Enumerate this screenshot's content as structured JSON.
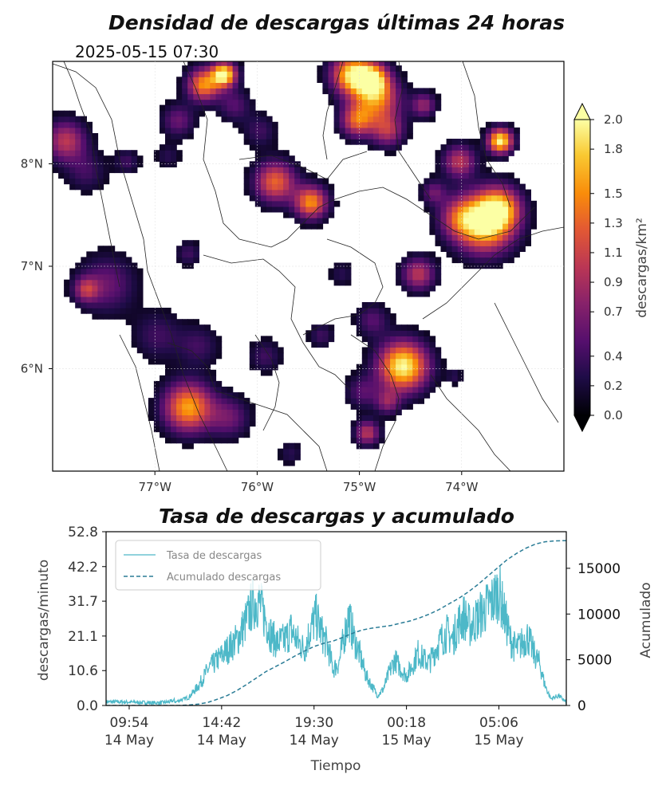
{
  "chart_data": [
    {
      "type": "heatmap",
      "title": "Densidad de descargas últimas 24 horas",
      "subtitle": "2025-05-15 07:30",
      "x_ticks": [
        "77°W",
        "76°W",
        "75°W",
        "74°W"
      ],
      "x_tick_values": [
        -77,
        -76,
        -75,
        -74
      ],
      "y_ticks": [
        "8°N",
        "7°N",
        "6°N"
      ],
      "y_tick_values": [
        8,
        7,
        6
      ],
      "xlim": [
        -78,
        -73
      ],
      "ylim": [
        5,
        9
      ],
      "colorbar": {
        "label": "descargas/km²",
        "ticks": [
          "0.0",
          "0.2",
          "0.4",
          "0.7",
          "0.9",
          "1.1",
          "1.3",
          "1.5",
          "1.8",
          "2.0"
        ],
        "tick_values": [
          0.0,
          0.2,
          0.4,
          0.7,
          0.9,
          1.1,
          1.3,
          1.5,
          1.8,
          2.0
        ],
        "range": [
          0,
          2.0
        ],
        "extend": "both",
        "colormap": "inferno"
      },
      "hotspots": [
        {
          "lon": -75.1,
          "lat": 8.85,
          "radius": 0.25,
          "peak": 1.8
        },
        {
          "lon": -74.85,
          "lat": 8.6,
          "radius": 0.28,
          "peak": 1.3
        },
        {
          "lon": -75.05,
          "lat": 8.4,
          "radius": 0.2,
          "peak": 1.2
        },
        {
          "lon": -74.9,
          "lat": 8.8,
          "radius": 0.2,
          "peak": 1.5
        },
        {
          "lon": -74.75,
          "lat": 8.3,
          "radius": 0.2,
          "peak": 0.9
        },
        {
          "lon": -74.05,
          "lat": 8.0,
          "radius": 0.2,
          "peak": 1.0
        },
        {
          "lon": -73.65,
          "lat": 8.2,
          "radius": 0.15,
          "peak": 2.0
        },
        {
          "lon": -73.8,
          "lat": 7.4,
          "radius": 0.35,
          "peak": 2.0
        },
        {
          "lon": -73.65,
          "lat": 7.55,
          "radius": 0.25,
          "peak": 1.2
        },
        {
          "lon": -74.05,
          "lat": 7.45,
          "radius": 0.25,
          "peak": 0.8
        },
        {
          "lon": -74.3,
          "lat": 7.7,
          "radius": 0.15,
          "peak": 0.6
        },
        {
          "lon": -74.45,
          "lat": 6.9,
          "radius": 0.2,
          "peak": 1.0
        },
        {
          "lon": -74.6,
          "lat": 6.0,
          "radius": 0.3,
          "peak": 2.0
        },
        {
          "lon": -74.75,
          "lat": 5.65,
          "radius": 0.15,
          "peak": 0.7
        },
        {
          "lon": -74.95,
          "lat": 5.35,
          "radius": 0.15,
          "peak": 1.0
        },
        {
          "lon": -75.0,
          "lat": 5.75,
          "radius": 0.2,
          "peak": 0.5
        },
        {
          "lon": -74.9,
          "lat": 6.45,
          "radius": 0.2,
          "peak": 0.5
        },
        {
          "lon": -75.5,
          "lat": 7.6,
          "radius": 0.2,
          "peak": 1.5
        },
        {
          "lon": -75.85,
          "lat": 7.8,
          "radius": 0.25,
          "peak": 1.3
        },
        {
          "lon": -76.35,
          "lat": 8.85,
          "radius": 0.15,
          "peak": 2.0
        },
        {
          "lon": -76.55,
          "lat": 8.75,
          "radius": 0.2,
          "peak": 1.5
        },
        {
          "lon": -76.25,
          "lat": 8.55,
          "radius": 0.2,
          "peak": 0.5
        },
        {
          "lon": -76.8,
          "lat": 8.4,
          "radius": 0.2,
          "peak": 0.6
        },
        {
          "lon": -77.9,
          "lat": 8.2,
          "radius": 0.25,
          "peak": 1.0
        },
        {
          "lon": -77.7,
          "lat": 7.9,
          "radius": 0.25,
          "peak": 0.4
        },
        {
          "lon": -77.3,
          "lat": 8.0,
          "radius": 0.15,
          "peak": 0.4
        },
        {
          "lon": -76.9,
          "lat": 8.05,
          "radius": 0.15,
          "peak": 0.3
        },
        {
          "lon": -77.5,
          "lat": 6.8,
          "radius": 0.35,
          "peak": 0.6
        },
        {
          "lon": -77.7,
          "lat": 6.75,
          "radius": 0.15,
          "peak": 0.8
        },
        {
          "lon": -77.0,
          "lat": 6.3,
          "radius": 0.3,
          "peak": 0.4
        },
        {
          "lon": -76.6,
          "lat": 6.2,
          "radius": 0.25,
          "peak": 0.4
        },
        {
          "lon": -76.7,
          "lat": 5.6,
          "radius": 0.3,
          "peak": 1.6
        },
        {
          "lon": -76.3,
          "lat": 5.5,
          "radius": 0.25,
          "peak": 0.6
        },
        {
          "lon": -75.95,
          "lat": 6.1,
          "radius": 0.2,
          "peak": 0.4
        },
        {
          "lon": -75.7,
          "lat": 5.15,
          "radius": 0.15,
          "peak": 0.3
        },
        {
          "lon": -75.2,
          "lat": 6.9,
          "radius": 0.15,
          "peak": 0.3
        },
        {
          "lon": -75.4,
          "lat": 6.3,
          "radius": 0.15,
          "peak": 0.4
        },
        {
          "lon": -76.0,
          "lat": 8.3,
          "radius": 0.2,
          "peak": 0.4
        },
        {
          "lon": -76.7,
          "lat": 7.1,
          "radius": 0.15,
          "peak": 0.4
        },
        {
          "lon": -74.1,
          "lat": 5.9,
          "radius": 0.1,
          "peak": 0.3
        },
        {
          "lon": -74.4,
          "lat": 8.55,
          "radius": 0.15,
          "peak": 0.8
        }
      ]
    },
    {
      "type": "line",
      "title": "Tasa de descargas y acumulado",
      "xlabel": "Tiempo",
      "ylabel": "descargas/minuto",
      "y2label": "Acumulado",
      "ylim": [
        0,
        52.8
      ],
      "y2lim": [
        0,
        19000
      ],
      "x_range_hours": [
        8.7,
        32.6
      ],
      "y_ticks": [
        "0.0",
        "10.6",
        "21.1",
        "31.7",
        "42.2",
        "52.8"
      ],
      "y_tick_values": [
        0,
        10.6,
        21.1,
        31.7,
        42.2,
        52.8
      ],
      "y2_ticks": [
        "0",
        "5000",
        "10000",
        "15000"
      ],
      "y2_tick_values": [
        0,
        5000,
        10000,
        15000
      ],
      "x_ticks": [
        {
          "hours": 9.9,
          "time": "09:54",
          "date": "14 May"
        },
        {
          "hours": 14.7,
          "time": "14:42",
          "date": "14 May"
        },
        {
          "hours": 19.5,
          "time": "19:30",
          "date": "14 May"
        },
        {
          "hours": 24.3,
          "time": "00:18",
          "date": "15 May"
        },
        {
          "hours": 29.1,
          "time": "05:06",
          "date": "15 May"
        }
      ],
      "legend": {
        "placement": "top-left",
        "entries": [
          "Tasa de descargas",
          "Acumulado descargas"
        ]
      },
      "series": [
        {
          "name": "Tasa de descargas",
          "color": "#4db8c8",
          "points": [
            [
              8.7,
              0.5
            ],
            [
              9.5,
              0.5
            ],
            [
              10.5,
              0.3
            ],
            [
              11.5,
              0.2
            ],
            [
              12.0,
              0.5
            ],
            [
              12.5,
              1.5
            ],
            [
              13.0,
              2.5
            ],
            [
              13.5,
              6
            ],
            [
              14.0,
              11
            ],
            [
              14.5,
              14
            ],
            [
              15.0,
              17
            ],
            [
              15.5,
              20
            ],
            [
              16.0,
              26
            ],
            [
              16.3,
              31
            ],
            [
              16.6,
              32
            ],
            [
              17.0,
              26
            ],
            [
              17.3,
              21
            ],
            [
              17.6,
              19
            ],
            [
              18.0,
              20
            ],
            [
              18.3,
              23
            ],
            [
              18.6,
              20
            ],
            [
              19.0,
              17
            ],
            [
              19.3,
              23
            ],
            [
              19.6,
              27
            ],
            [
              19.9,
              22
            ],
            [
              20.2,
              18
            ],
            [
              20.5,
              11
            ],
            [
              20.8,
              13
            ],
            [
              21.1,
              22
            ],
            [
              21.3,
              27
            ],
            [
              21.6,
              20
            ],
            [
              21.9,
              15
            ],
            [
              22.2,
              9
            ],
            [
              22.5,
              6
            ],
            [
              22.8,
              3
            ],
            [
              23.1,
              5
            ],
            [
              23.4,
              10
            ],
            [
              23.7,
              14
            ],
            [
              24.0,
              11
            ],
            [
              24.3,
              9
            ],
            [
              24.6,
              12
            ],
            [
              24.9,
              16
            ],
            [
              25.2,
              14
            ],
            [
              25.5,
              13
            ],
            [
              25.8,
              17
            ],
            [
              26.1,
              20
            ],
            [
              26.4,
              22
            ],
            [
              26.7,
              20
            ],
            [
              27.0,
              25
            ],
            [
              27.3,
              27
            ],
            [
              27.6,
              24
            ],
            [
              27.9,
              26
            ],
            [
              28.2,
              28
            ],
            [
              28.5,
              30
            ],
            [
              28.8,
              32
            ],
            [
              29.1,
              35
            ],
            [
              29.4,
              27
            ],
            [
              29.7,
              20
            ],
            [
              30.0,
              17
            ],
            [
              30.3,
              19
            ],
            [
              30.6,
              21
            ],
            [
              30.9,
              16
            ],
            [
              31.2,
              13
            ],
            [
              31.5,
              6
            ],
            [
              31.8,
              2
            ],
            [
              32.2,
              3
            ],
            [
              32.6,
              1
            ]
          ]
        },
        {
          "name": "Acumulado descargas",
          "color": "#2a7c96",
          "points": [
            [
              8.7,
              0
            ],
            [
              12.5,
              0
            ],
            [
              13.0,
              50
            ],
            [
              13.5,
              150
            ],
            [
              14.0,
              350
            ],
            [
              14.5,
              700
            ],
            [
              15.0,
              1100
            ],
            [
              15.5,
              1650
            ],
            [
              16.0,
              2300
            ],
            [
              16.5,
              3000
            ],
            [
              17.0,
              3700
            ],
            [
              17.5,
              4250
            ],
            [
              18.0,
              4800
            ],
            [
              18.5,
              5400
            ],
            [
              19.0,
              5950
            ],
            [
              19.5,
              6450
            ],
            [
              20.0,
              6800
            ],
            [
              20.5,
              7050
            ],
            [
              21.0,
              7450
            ],
            [
              21.5,
              7900
            ],
            [
              22.0,
              8250
            ],
            [
              22.5,
              8450
            ],
            [
              23.0,
              8600
            ],
            [
              23.5,
              8750
            ],
            [
              24.0,
              9000
            ],
            [
              24.5,
              9250
            ],
            [
              25.0,
              9600
            ],
            [
              25.5,
              10000
            ],
            [
              26.0,
              10500
            ],
            [
              26.5,
              11100
            ],
            [
              27.0,
              11700
            ],
            [
              27.5,
              12400
            ],
            [
              28.0,
              13200
            ],
            [
              28.5,
              14100
            ],
            [
              29.0,
              15000
            ],
            [
              29.5,
              15900
            ],
            [
              30.0,
              16600
            ],
            [
              30.5,
              17200
            ],
            [
              31.0,
              17650
            ],
            [
              31.5,
              17900
            ],
            [
              32.0,
              18000
            ],
            [
              32.6,
              18020
            ]
          ]
        }
      ]
    }
  ]
}
